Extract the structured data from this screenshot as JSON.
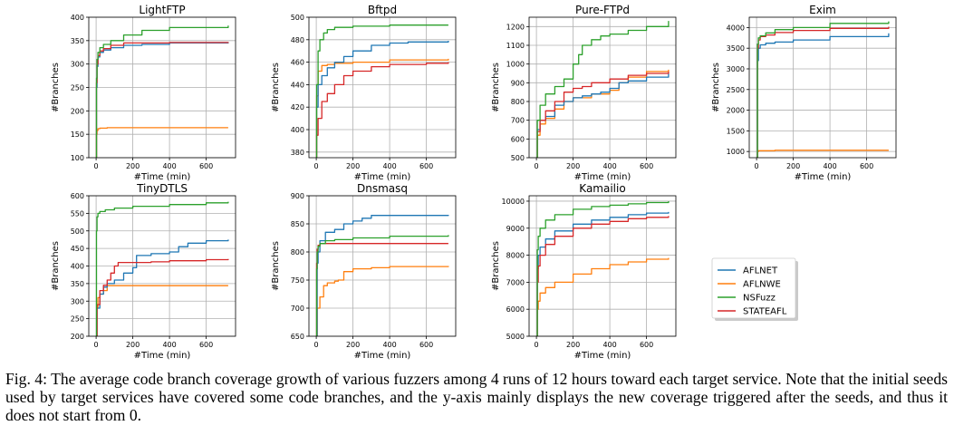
{
  "caption": "Fig. 4: The average code branch coverage growth of various fuzzers among 4 runs of 12 hours toward each target service. Note that the initial seeds used by target services have covered some code branches, and the y-axis mainly displays the new coverage triggered after the seeds, and thus it does not start from 0.",
  "legend": {
    "placement": "lower-right",
    "entries": [
      {
        "name": "AFLNET",
        "color": "#1f77b4"
      },
      {
        "name": "AFLNWE",
        "color": "#ff7f0e"
      },
      {
        "name": "NSFuzz",
        "color": "#2ca02c"
      },
      {
        "name": "STATEAFL",
        "color": "#d62728"
      }
    ]
  },
  "chart_data": [
    {
      "type": "line",
      "title": "LightFTP",
      "xlabel": "#Time (min)",
      "ylabel": "#Branches",
      "xlim": [
        -40,
        760
      ],
      "ylim": [
        100,
        400
      ],
      "grid": true,
      "xticks": [
        0,
        200,
        400,
        600
      ],
      "yticks": [
        100,
        150,
        200,
        250,
        300,
        350,
        400
      ],
      "series": [
        {
          "name": "AFLNET",
          "x": [
            0,
            2,
            5,
            10,
            20,
            40,
            80,
            150,
            250,
            400,
            720
          ],
          "y": [
            100,
            250,
            295,
            315,
            325,
            330,
            335,
            340,
            342,
            345,
            346
          ]
        },
        {
          "name": "AFLNWE",
          "x": [
            0,
            2,
            5,
            10,
            20,
            60,
            720
          ],
          "y": [
            100,
            150,
            158,
            162,
            163,
            164,
            164
          ]
        },
        {
          "name": "NSFuzz",
          "x": [
            0,
            2,
            5,
            10,
            20,
            40,
            80,
            150,
            250,
            400,
            720
          ],
          "y": [
            100,
            270,
            310,
            325,
            335,
            342,
            350,
            362,
            372,
            378,
            382
          ]
        },
        {
          "name": "STATEAFL",
          "x": [
            0,
            2,
            5,
            10,
            20,
            40,
            80,
            150,
            250,
            400,
            720
          ],
          "y": [
            100,
            260,
            300,
            318,
            328,
            333,
            340,
            345,
            345,
            346,
            347
          ]
        }
      ]
    },
    {
      "type": "line",
      "title": "Bftpd",
      "xlabel": "#Time (min)",
      "ylabel": "#Branches",
      "xlim": [
        -40,
        760
      ],
      "ylim": [
        375,
        500
      ],
      "grid": true,
      "xticks": [
        0,
        200,
        400,
        600
      ],
      "yticks": [
        380,
        400,
        420,
        440,
        460,
        480,
        500
      ],
      "series": [
        {
          "name": "AFLNET",
          "x": [
            0,
            2,
            10,
            30,
            60,
            100,
            150,
            200,
            300,
            400,
            500,
            720
          ],
          "y": [
            375,
            420,
            440,
            448,
            455,
            460,
            465,
            470,
            475,
            477,
            478,
            479
          ]
        },
        {
          "name": "AFLNWE",
          "x": [
            0,
            2,
            10,
            30,
            60,
            100,
            200,
            400,
            720
          ],
          "y": [
            375,
            430,
            452,
            457,
            458,
            459,
            460,
            462,
            463
          ]
        },
        {
          "name": "NSFuzz",
          "x": [
            0,
            2,
            10,
            20,
            40,
            60,
            100,
            200,
            400,
            720
          ],
          "y": [
            375,
            440,
            470,
            480,
            486,
            489,
            491,
            492,
            493,
            493
          ]
        },
        {
          "name": "STATEAFL",
          "x": [
            0,
            2,
            10,
            30,
            60,
            100,
            150,
            200,
            300,
            400,
            600,
            720
          ],
          "y": [
            375,
            395,
            410,
            425,
            432,
            440,
            448,
            452,
            456,
            458,
            459,
            460
          ]
        }
      ]
    },
    {
      "type": "line",
      "title": "Pure-FTPd",
      "xlabel": "#Time (min)",
      "ylabel": "#Branches",
      "xlim": [
        -40,
        760
      ],
      "ylim": [
        500,
        1250
      ],
      "grid": true,
      "xticks": [
        0,
        200,
        400,
        600
      ],
      "yticks": [
        500,
        600,
        700,
        800,
        900,
        1000,
        1100,
        1200
      ],
      "series": [
        {
          "name": "AFLNET",
          "x": [
            0,
            5,
            20,
            50,
            100,
            150,
            200,
            250,
            300,
            350,
            400,
            450,
            500,
            600,
            720
          ],
          "y": [
            500,
            650,
            700,
            720,
            780,
            800,
            820,
            830,
            840,
            850,
            870,
            900,
            910,
            930,
            950
          ]
        },
        {
          "name": "AFLNWE",
          "x": [
            0,
            5,
            20,
            50,
            100,
            150,
            200,
            300,
            400,
            450,
            500,
            600,
            720
          ],
          "y": [
            500,
            620,
            680,
            710,
            760,
            800,
            820,
            840,
            860,
            900,
            930,
            960,
            970
          ]
        },
        {
          "name": "NSFuzz",
          "x": [
            0,
            5,
            20,
            50,
            100,
            150,
            200,
            230,
            250,
            300,
            350,
            400,
            500,
            600,
            720
          ],
          "y": [
            500,
            700,
            780,
            840,
            880,
            920,
            1000,
            1050,
            1100,
            1130,
            1150,
            1160,
            1180,
            1200,
            1230
          ]
        },
        {
          "name": "STATEAFL",
          "x": [
            0,
            5,
            20,
            50,
            100,
            150,
            200,
            250,
            300,
            400,
            500,
            600,
            720
          ],
          "y": [
            500,
            640,
            700,
            750,
            800,
            850,
            870,
            880,
            900,
            920,
            940,
            950,
            960
          ]
        }
      ]
    },
    {
      "type": "line",
      "title": "Exim",
      "xlabel": "#Time (min)",
      "ylabel": "#Branches",
      "xlim": [
        -40,
        760
      ],
      "ylim": [
        850,
        4250
      ],
      "grid": true,
      "xticks": [
        0,
        200,
        400,
        600
      ],
      "yticks": [
        1000,
        1500,
        2000,
        2500,
        3000,
        3500,
        4000
      ],
      "series": [
        {
          "name": "AFLNET",
          "x": [
            0,
            5,
            10,
            20,
            50,
            100,
            200,
            400,
            720
          ],
          "y": [
            850,
            3200,
            3500,
            3580,
            3620,
            3650,
            3700,
            3780,
            3860
          ]
        },
        {
          "name": "AFLNWE",
          "x": [
            0,
            5,
            10,
            100,
            400,
            720
          ],
          "y": [
            850,
            1000,
            1020,
            1030,
            1030,
            1030
          ]
        },
        {
          "name": "NSFuzz",
          "x": [
            0,
            5,
            10,
            20,
            50,
            100,
            200,
            400,
            720
          ],
          "y": [
            850,
            3600,
            3750,
            3800,
            3870,
            3950,
            4000,
            4100,
            4150
          ]
        },
        {
          "name": "STATEAFL",
          "x": [
            0,
            5,
            10,
            20,
            50,
            100,
            200,
            400,
            720
          ],
          "y": [
            850,
            3500,
            3700,
            3780,
            3820,
            3880,
            3930,
            3980,
            4020
          ]
        }
      ]
    },
    {
      "type": "line",
      "title": "TinyDTLS",
      "xlabel": "#Time (min)",
      "ylabel": "#Branches",
      "xlim": [
        -40,
        760
      ],
      "ylim": [
        200,
        600
      ],
      "grid": true,
      "xticks": [
        0,
        200,
        400,
        600
      ],
      "yticks": [
        200,
        250,
        300,
        350,
        400,
        450,
        500,
        550,
        600
      ],
      "series": [
        {
          "name": "AFLNET",
          "x": [
            0,
            5,
            20,
            40,
            60,
            100,
            150,
            200,
            220,
            300,
            400,
            450,
            500,
            600,
            720
          ],
          "y": [
            200,
            280,
            320,
            340,
            350,
            360,
            380,
            395,
            430,
            435,
            440,
            455,
            465,
            472,
            475
          ]
        },
        {
          "name": "AFLNWE",
          "x": [
            0,
            5,
            10,
            20,
            40,
            60,
            720
          ],
          "y": [
            200,
            280,
            310,
            320,
            330,
            344,
            344
          ]
        },
        {
          "name": "NSFuzz",
          "x": [
            0,
            2,
            5,
            10,
            20,
            50,
            100,
            200,
            400,
            600,
            720
          ],
          "y": [
            200,
            500,
            540,
            550,
            555,
            560,
            565,
            570,
            575,
            580,
            583
          ]
        },
        {
          "name": "STATEAFL",
          "x": [
            0,
            5,
            20,
            40,
            60,
            80,
            100,
            120,
            200,
            300,
            400,
            600,
            720
          ],
          "y": [
            200,
            290,
            330,
            345,
            360,
            380,
            400,
            410,
            410,
            412,
            415,
            418,
            420
          ]
        }
      ]
    },
    {
      "type": "line",
      "title": "Dnsmasq",
      "xlabel": "#Time (min)",
      "ylabel": "#Branches",
      "xlim": [
        -40,
        760
      ],
      "ylim": [
        650,
        900
      ],
      "grid": true,
      "xticks": [
        0,
        200,
        400,
        600
      ],
      "yticks": [
        650,
        700,
        750,
        800,
        850,
        900
      ],
      "series": [
        {
          "name": "AFLNET",
          "x": [
            0,
            5,
            10,
            20,
            50,
            100,
            150,
            200,
            250,
            300,
            720
          ],
          "y": [
            650,
            780,
            800,
            820,
            835,
            840,
            850,
            855,
            860,
            865,
            866
          ]
        },
        {
          "name": "AFLNWE",
          "x": [
            0,
            5,
            20,
            40,
            60,
            100,
            120,
            150,
            200,
            300,
            400,
            720
          ],
          "y": [
            650,
            700,
            720,
            740,
            745,
            748,
            750,
            765,
            770,
            772,
            774,
            775
          ]
        },
        {
          "name": "NSFuzz",
          "x": [
            0,
            2,
            5,
            10,
            20,
            50,
            100,
            200,
            400,
            720
          ],
          "y": [
            650,
            770,
            800,
            810,
            815,
            820,
            822,
            825,
            828,
            830
          ]
        },
        {
          "name": "STATEAFL",
          "x": [
            0,
            2,
            5,
            10,
            20,
            100,
            720
          ],
          "y": [
            650,
            780,
            805,
            812,
            815,
            815,
            815
          ]
        }
      ]
    },
    {
      "type": "line",
      "title": "Kamailio",
      "xlabel": "#Time (min)",
      "ylabel": "#Branches",
      "xlim": [
        -40,
        760
      ],
      "ylim": [
        5000,
        10200
      ],
      "grid": true,
      "xticks": [
        0,
        200,
        400,
        600
      ],
      "yticks": [
        5000,
        6000,
        7000,
        8000,
        9000,
        10000
      ],
      "series": [
        {
          "name": "AFLNET",
          "x": [
            0,
            5,
            10,
            20,
            50,
            100,
            200,
            300,
            400,
            500,
            600,
            720
          ],
          "y": [
            5000,
            7500,
            8000,
            8300,
            8600,
            8900,
            9150,
            9300,
            9400,
            9500,
            9560,
            9600
          ]
        },
        {
          "name": "AFLNWE",
          "x": [
            0,
            5,
            10,
            20,
            50,
            100,
            200,
            300,
            400,
            500,
            600,
            720
          ],
          "y": [
            5000,
            6000,
            6300,
            6600,
            6800,
            7000,
            7300,
            7500,
            7650,
            7750,
            7850,
            7900
          ]
        },
        {
          "name": "NSFuzz",
          "x": [
            0,
            5,
            10,
            20,
            50,
            100,
            200,
            300,
            400,
            500,
            600,
            720
          ],
          "y": [
            5000,
            8200,
            8700,
            9000,
            9300,
            9500,
            9700,
            9800,
            9850,
            9900,
            9950,
            10000
          ]
        },
        {
          "name": "STATEAFL",
          "x": [
            0,
            5,
            10,
            20,
            50,
            100,
            200,
            300,
            400,
            500,
            600,
            720
          ],
          "y": [
            5000,
            7000,
            7600,
            8000,
            8400,
            8700,
            9000,
            9150,
            9250,
            9350,
            9400,
            9450
          ]
        }
      ]
    }
  ]
}
